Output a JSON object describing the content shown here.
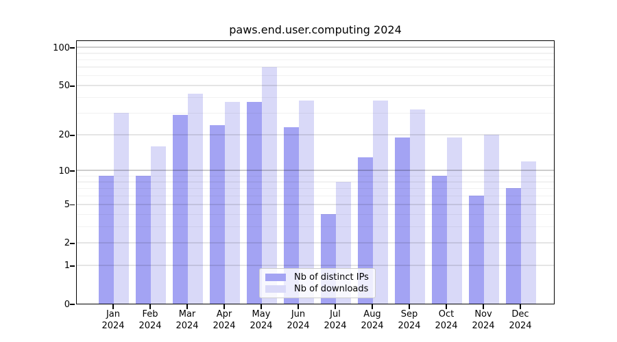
{
  "title": "paws.end.user.computing 2024",
  "colors": {
    "distinct_ips_bar": "#a3a3f3",
    "downloads_bar": "#d9d9f8",
    "axis": "#000000",
    "legend_border": "#cccccc"
  },
  "chart_data": {
    "type": "bar",
    "title": "paws.end.user.computing 2024",
    "categories": [
      "Jan 2024",
      "Feb 2024",
      "Mar 2024",
      "Apr 2024",
      "May 2024",
      "Jun 2024",
      "Jul 2024",
      "Aug 2024",
      "Sep 2024",
      "Oct 2024",
      "Nov 2024",
      "Dec 2024"
    ],
    "series": [
      {
        "name": "Nb of distinct IPs",
        "color": "#a3a3f3",
        "values": [
          9,
          9,
          29,
          24,
          37,
          23,
          4,
          13,
          19,
          9,
          6,
          7
        ]
      },
      {
        "name": "Nb of downloads",
        "color": "#d9d9f8",
        "values": [
          30,
          16,
          43,
          37,
          70,
          38,
          8,
          38,
          32,
          19,
          20,
          12
        ]
      }
    ],
    "xlabel": "",
    "ylabel": "",
    "yscale": "log1p",
    "ylim": [
      0,
      115
    ],
    "yticks": [
      0,
      1,
      2,
      5,
      10,
      20,
      50,
      100
    ],
    "minor_gridlines": [
      3,
      4,
      6,
      7,
      8,
      9,
      30,
      40,
      60,
      70,
      80,
      90
    ],
    "strong_gridlines": [
      10,
      100
    ],
    "grid": true,
    "legend_position": "lower center"
  }
}
